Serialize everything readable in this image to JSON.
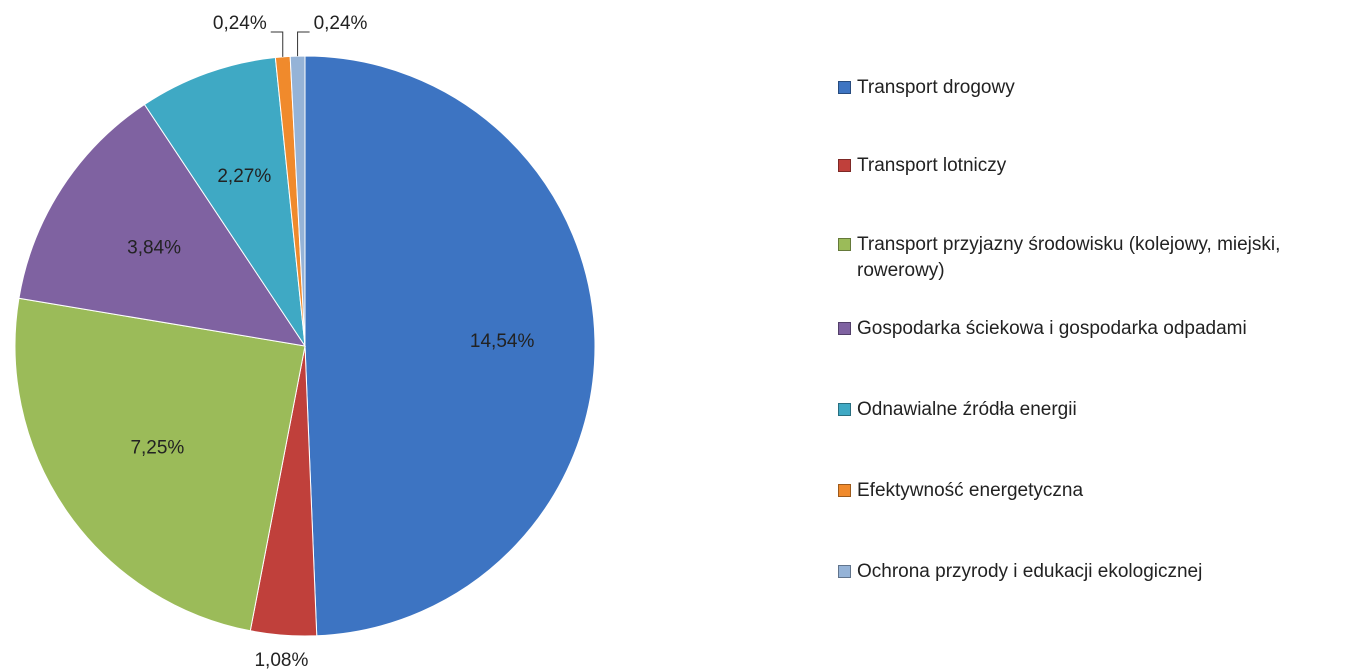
{
  "chart_data": {
    "type": "pie",
    "categories": [
      "Transport drogowy",
      "Transport lotniczy",
      "Transport przyjazny środowisku (kolejowy, miejski, rowerowy)",
      "Gospodarka ściekowa i gospodarka odpadami",
      "Odnawialne źródła energii",
      "Efektywność energetyczna",
      "Ochrona przyrody i edukacji ekologicznej"
    ],
    "values": [
      14.54,
      1.08,
      7.25,
      3.84,
      2.27,
      0.24,
      0.24
    ],
    "value_labels": [
      "14,54%",
      "1,08%",
      "7,25%",
      "3,84%",
      "2,27%",
      "0,24%",
      "0,24%"
    ],
    "colors": [
      "#3d74c2",
      "#c0403b",
      "#9bbb59",
      "#7f62a1",
      "#3fa9c4",
      "#f08a2c",
      "#95b3d7"
    ],
    "legend": "right"
  }
}
